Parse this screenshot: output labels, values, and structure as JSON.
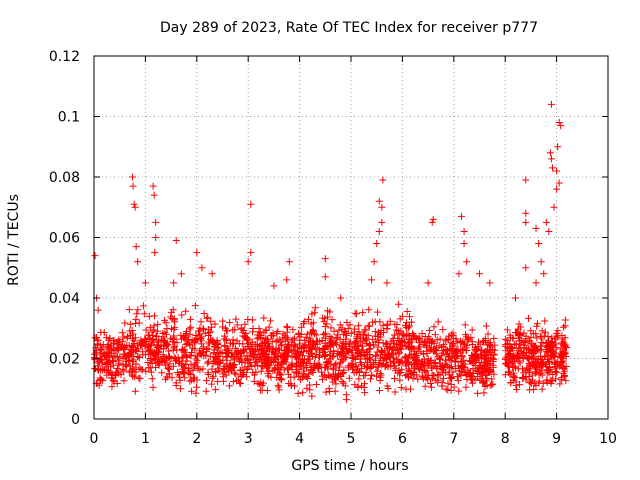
{
  "chart_data": {
    "type": "scatter",
    "title": "Day 289 of 2023, Rate Of TEC Index for receiver p777",
    "xlabel": "GPS time / hours",
    "ylabel": "ROTI / TECUs",
    "xlim": [
      0,
      10
    ],
    "ylim": [
      0,
      0.12
    ],
    "xticks": [
      0,
      1,
      2,
      3,
      4,
      5,
      6,
      7,
      8,
      9,
      10
    ],
    "xtick_labels": [
      "0",
      "1",
      "2",
      "3",
      "4",
      "5",
      "6",
      "7",
      "8",
      "9",
      "10"
    ],
    "yticks": [
      0,
      0.02,
      0.04,
      0.06,
      0.08,
      0.1,
      0.12
    ],
    "ytick_labels": [
      "0",
      "0.02",
      "0.04",
      "0.06",
      "0.08",
      "0.1",
      "0.12"
    ],
    "grid": true,
    "marker": "+",
    "color": "#ff0000",
    "series": [
      {
        "name": "ROTI",
        "bands": [
          {
            "x": [
              0.0,
              0.6
            ],
            "y": [
              0.008,
              0.03
            ],
            "n": 140
          },
          {
            "x": [
              0.6,
              2.5
            ],
            "y": [
              0.006,
              0.035
            ],
            "n": 420
          },
          {
            "x": [
              2.5,
              4.2
            ],
            "y": [
              0.006,
              0.032
            ],
            "n": 460
          },
          {
            "x": [
              4.2,
              6.2
            ],
            "y": [
              0.005,
              0.035
            ],
            "n": 520
          },
          {
            "x": [
              6.2,
              7.8
            ],
            "y": [
              0.006,
              0.03
            ],
            "n": 420
          },
          {
            "x": [
              8.0,
              9.2
            ],
            "y": [
              0.006,
              0.032
            ],
            "n": 360
          }
        ],
        "highlights": [
          {
            "x": 0.02,
            "y": 0.054
          },
          {
            "x": 0.05,
            "y": 0.04
          },
          {
            "x": 0.08,
            "y": 0.036
          },
          {
            "x": 0.75,
            "y": 0.08
          },
          {
            "x": 0.76,
            "y": 0.077
          },
          {
            "x": 0.78,
            "y": 0.071
          },
          {
            "x": 0.8,
            "y": 0.07
          },
          {
            "x": 0.82,
            "y": 0.057
          },
          {
            "x": 0.85,
            "y": 0.052
          },
          {
            "x": 1.15,
            "y": 0.077
          },
          {
            "x": 1.17,
            "y": 0.074
          },
          {
            "x": 1.2,
            "y": 0.065
          },
          {
            "x": 1.2,
            "y": 0.06
          },
          {
            "x": 1.18,
            "y": 0.055
          },
          {
            "x": 1.0,
            "y": 0.045
          },
          {
            "x": 1.6,
            "y": 0.059
          },
          {
            "x": 1.55,
            "y": 0.045
          },
          {
            "x": 1.7,
            "y": 0.048
          },
          {
            "x": 2.0,
            "y": 0.055
          },
          {
            "x": 2.1,
            "y": 0.05
          },
          {
            "x": 2.3,
            "y": 0.048
          },
          {
            "x": 3.05,
            "y": 0.071
          },
          {
            "x": 3.05,
            "y": 0.055
          },
          {
            "x": 3.0,
            "y": 0.052
          },
          {
            "x": 3.8,
            "y": 0.052
          },
          {
            "x": 3.75,
            "y": 0.046
          },
          {
            "x": 3.5,
            "y": 0.044
          },
          {
            "x": 4.5,
            "y": 0.053
          },
          {
            "x": 4.5,
            "y": 0.047
          },
          {
            "x": 4.8,
            "y": 0.04
          },
          {
            "x": 5.45,
            "y": 0.052
          },
          {
            "x": 5.5,
            "y": 0.058
          },
          {
            "x": 5.55,
            "y": 0.062
          },
          {
            "x": 5.6,
            "y": 0.065
          },
          {
            "x": 5.55,
            "y": 0.072
          },
          {
            "x": 5.62,
            "y": 0.079
          },
          {
            "x": 5.6,
            "y": 0.07
          },
          {
            "x": 5.4,
            "y": 0.046
          },
          {
            "x": 5.7,
            "y": 0.045
          },
          {
            "x": 6.6,
            "y": 0.066
          },
          {
            "x": 6.58,
            "y": 0.065
          },
          {
            "x": 6.5,
            "y": 0.045
          },
          {
            "x": 7.15,
            "y": 0.067
          },
          {
            "x": 7.2,
            "y": 0.062
          },
          {
            "x": 7.2,
            "y": 0.058
          },
          {
            "x": 7.25,
            "y": 0.052
          },
          {
            "x": 7.1,
            "y": 0.048
          },
          {
            "x": 7.5,
            "y": 0.048
          },
          {
            "x": 7.7,
            "y": 0.045
          },
          {
            "x": 8.4,
            "y": 0.079
          },
          {
            "x": 8.4,
            "y": 0.068
          },
          {
            "x": 8.4,
            "y": 0.065
          },
          {
            "x": 8.6,
            "y": 0.063
          },
          {
            "x": 8.65,
            "y": 0.058
          },
          {
            "x": 8.7,
            "y": 0.052
          },
          {
            "x": 8.75,
            "y": 0.048
          },
          {
            "x": 8.8,
            "y": 0.065
          },
          {
            "x": 8.85,
            "y": 0.062
          },
          {
            "x": 8.9,
            "y": 0.104
          },
          {
            "x": 8.88,
            "y": 0.088
          },
          {
            "x": 8.9,
            "y": 0.086
          },
          {
            "x": 8.92,
            "y": 0.083
          },
          {
            "x": 9.05,
            "y": 0.098
          },
          {
            "x": 9.08,
            "y": 0.097
          },
          {
            "x": 9.02,
            "y": 0.09
          },
          {
            "x": 9.0,
            "y": 0.082
          },
          {
            "x": 9.05,
            "y": 0.078
          },
          {
            "x": 9.0,
            "y": 0.076
          },
          {
            "x": 8.95,
            "y": 0.07
          },
          {
            "x": 8.4,
            "y": 0.05
          },
          {
            "x": 8.2,
            "y": 0.04
          },
          {
            "x": 8.6,
            "y": 0.045
          }
        ]
      }
    ]
  }
}
